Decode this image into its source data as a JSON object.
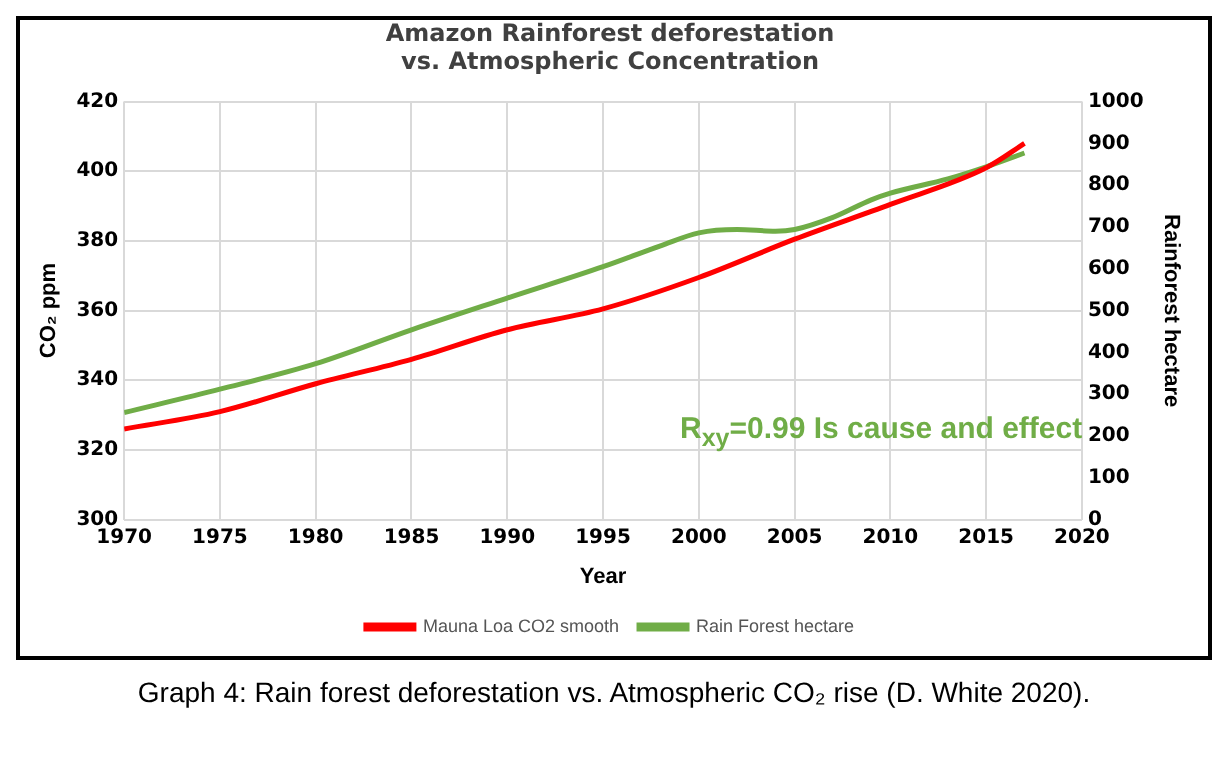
{
  "chart_data": {
    "type": "line",
    "title": "Amazon Rainforest deforestation\nvs. Atmospheric Concentration",
    "xlabel": "Year",
    "ylabel": "CO₂ ppm",
    "y2label": "Rainforest hectare",
    "xlim": [
      1970,
      2020
    ],
    "xticks": [
      1970,
      1975,
      1980,
      1985,
      1990,
      1995,
      2000,
      2005,
      2010,
      2015,
      2020
    ],
    "ylim": [
      300,
      420
    ],
    "yticks": [
      300,
      320,
      340,
      360,
      380,
      400,
      420
    ],
    "y2lim": [
      0,
      1000
    ],
    "y2ticks": [
      0,
      100,
      200,
      300,
      400,
      500,
      600,
      700,
      800,
      900,
      1000
    ],
    "grid": true,
    "legend": "bottom",
    "marker": "none",
    "line_style": "solid",
    "series": [
      {
        "name": "Mauna Loa CO2 smooth",
        "color": "#ff0000",
        "x": [
          1970,
          1975,
          1980,
          1985,
          1990,
          1995,
          2000,
          2005,
          2010,
          2015,
          2017
        ],
        "values": [
          326,
          331,
          339,
          346,
          354.5,
          360.5,
          369.5,
          380.5,
          390.5,
          401,
          408
        ]
      },
      {
        "name": "Rain Forest hectare",
        "color": "#70ad47",
        "axis": "y2",
        "x": [
          1970,
          1975,
          1980,
          1985,
          1990,
          1995,
          1998,
          2000,
          2002,
          2004,
          2005,
          2007,
          2009,
          2010,
          2013,
          2015,
          2017
        ],
        "values": [
          256,
          312,
          373,
          454,
          530,
          605,
          655,
          686,
          694,
          690,
          694,
          723,
          765,
          781,
          815,
          844,
          877
        ]
      }
    ],
    "annotations": [
      "R$_{xy}$=0.99 Is cause and effect",
      "Graph 4: Rain forest deforestation vs. Atmospheric CO₂ rise (D. White 2020)."
    ]
  }
}
